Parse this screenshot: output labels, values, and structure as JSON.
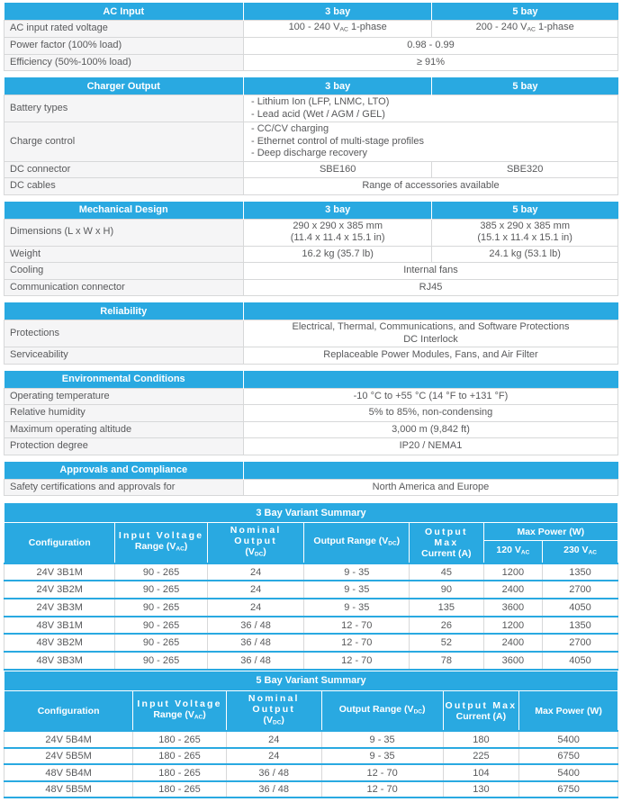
{
  "theme": {
    "accent": "#29a9e1",
    "text_color": "#58595b",
    "label_bg": "#f5f5f6",
    "border": "#d7d8d9",
    "header_text": "#ffffff"
  },
  "spec_tables": [
    {
      "title": "AC Input",
      "columns": [
        "3 bay",
        "5 bay"
      ],
      "rows": [
        {
          "label": "AC input rated voltage",
          "values": [
            "100 - 240 V~AC~ 1-phase",
            "200 - 240 V~AC~ 1-phase"
          ]
        },
        {
          "label": "Power factor (100% load)",
          "span": "0.98 - 0.99"
        },
        {
          "label": "Efficiency (50%-100% load)",
          "span": "≥ 91%"
        }
      ]
    },
    {
      "title": "Charger Output",
      "columns": [
        "3 bay",
        "5 bay"
      ],
      "rows": [
        {
          "label": "Battery types",
          "align": "left",
          "span": [
            "- Lithium Ion (LFP, LNMC, LTO)",
            "- Lead acid (Wet / AGM / GEL)"
          ]
        },
        {
          "label": "Charge control",
          "align": "left",
          "span": [
            "- CC/CV charging",
            "- Ethernet control of multi-stage profiles",
            "- Deep discharge recovery"
          ]
        },
        {
          "label": "DC connector",
          "values": [
            "SBE160",
            "SBE320"
          ]
        },
        {
          "label": "DC cables",
          "span": "Range of accessories available"
        }
      ]
    },
    {
      "title": "Mechanical Design",
      "columns": [
        "3 bay",
        "5 bay"
      ],
      "rows": [
        {
          "label": "Dimensions (L x W x H)",
          "values": [
            [
              "290 x 290 x 385 mm",
              "(11.4 x 11.4 x 15.1 in)"
            ],
            [
              "385 x 290 x 385 mm",
              "(15.1 x 11.4 x 15.1 in)"
            ]
          ]
        },
        {
          "label": "Weight",
          "values": [
            "16.2 kg (35.7 lb)",
            "24.1 kg (53.1 lb)"
          ]
        },
        {
          "label": "Cooling",
          "span": "Internal fans"
        },
        {
          "label": "Communication connector",
          "span": "RJ45"
        }
      ]
    },
    {
      "title": "Reliability",
      "columns": null,
      "rows": [
        {
          "label": "Protections",
          "span": [
            "Electrical, Thermal, Communications, and Software Protections",
            "DC Interlock"
          ]
        },
        {
          "label": "Serviceability",
          "span": "Replaceable Power Modules, Fans, and Air Filter"
        }
      ]
    },
    {
      "title": "Environmental Conditions",
      "columns": null,
      "rows": [
        {
          "label": "Operating temperature",
          "span": "-10 °C to +55 °C (14 °F to +131 °F)"
        },
        {
          "label": "Relative humidity",
          "span": "5% to 85%, non-condensing"
        },
        {
          "label": "Maximum operating altitude",
          "span": "3,000 m (9,842 ft)"
        },
        {
          "label": "Protection degree",
          "span": "IP20 / NEMA1"
        }
      ]
    },
    {
      "title": "Approvals and Compliance",
      "columns": null,
      "rows": [
        {
          "label": "Safety certifications and approvals for",
          "span": "North America and Europe"
        }
      ]
    }
  ],
  "variant_tables": [
    {
      "title": "3 Bay Variant Summary",
      "columns": [
        {
          "label": [
            "Configuration"
          ],
          "width": 18.1
        },
        {
          "label": [
            "Input Voltage",
            "Range (V~AC~)"
          ],
          "spread": true,
          "width": 15.0
        },
        {
          "label": [
            "Nominal Output",
            "(V~DC~)"
          ],
          "spread": true,
          "width": 15.8
        },
        {
          "label": [
            "Output Range (V~DC~)"
          ],
          "width": 17.1
        },
        {
          "label": [
            "Output Max",
            "Current (A)"
          ],
          "spread": true,
          "width": 12.1
        },
        {
          "label": [
            "Max Power (W)"
          ],
          "children": [
            {
              "label": [
                "120 V~AC~"
              ],
              "width": 9.6
            },
            {
              "label": [
                "230 V~AC~"
              ],
              "width": 12.3
            }
          ]
        }
      ],
      "rows": [
        [
          "24V 3B1M",
          "90 - 265",
          "24",
          "9 - 35",
          "45",
          "1200",
          "1350"
        ],
        [
          "24V 3B2M",
          "90 - 265",
          "24",
          "9 - 35",
          "90",
          "2400",
          "2700"
        ],
        [
          "24V 3B3M",
          "90 - 265",
          "24",
          "9 - 35",
          "135",
          "3600",
          "4050"
        ],
        [
          "48V 3B1M",
          "90 - 265",
          "36 / 48",
          "12 - 70",
          "26",
          "1200",
          "1350"
        ],
        [
          "48V 3B2M",
          "90 - 265",
          "36 / 48",
          "12 - 70",
          "52",
          "2400",
          "2700"
        ],
        [
          "48V 3B3M",
          "90 - 265",
          "36 / 48",
          "12 - 70",
          "78",
          "3600",
          "4050"
        ]
      ]
    },
    {
      "title": "5 Bay Variant Summary",
      "columns": [
        {
          "label": [
            "Configuration"
          ],
          "width": 21.0
        },
        {
          "label": [
            "Input Voltage",
            "Range (V~AC~)"
          ],
          "spread": true,
          "width": 15.2
        },
        {
          "label": [
            "Nominal Output",
            "(V~DC~)"
          ],
          "spread": true,
          "width": 15.5
        },
        {
          "label": [
            "Output Range (V~DC~)"
          ],
          "width": 19.8
        },
        {
          "label": [
            "Output Max",
            "Current (A)"
          ],
          "spread": true,
          "width": 12.4
        },
        {
          "label": [
            "Max Power (W)"
          ],
          "width": 16.1
        }
      ],
      "rows": [
        [
          "24V 5B4M",
          "180 - 265",
          "24",
          "9 - 35",
          "180",
          "5400"
        ],
        [
          "24V 5B5M",
          "180 - 265",
          "24",
          "9 - 35",
          "225",
          "6750"
        ],
        [
          "48V 5B4M",
          "180 - 265",
          "36 / 48",
          "12 - 70",
          "104",
          "5400"
        ],
        [
          "48V 5B5M",
          "180 - 265",
          "36 / 48",
          "12 - 70",
          "130",
          "6750"
        ]
      ]
    }
  ]
}
